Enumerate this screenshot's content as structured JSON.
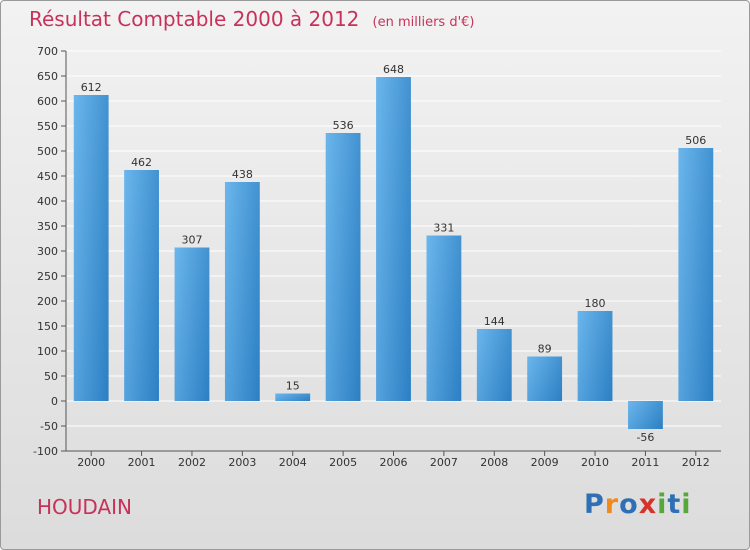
{
  "header": {
    "title": "Résultat Comptable 2000 à 2012",
    "subtitle": "(en milliers d'€)"
  },
  "footer": {
    "place": "HOUDAIN",
    "brand_letters": [
      "P",
      "r",
      "o",
      "x",
      "i",
      "t",
      "i"
    ],
    "brand_colors": [
      "#2f6fb5",
      "#f08a1c",
      "#2f6fb5",
      "#d6322b",
      "#56a83a",
      "#2f6fb5",
      "#56a83a"
    ]
  },
  "colors": {
    "bar_light": "#6bb6ec",
    "bar_dark": "#2c7fc3",
    "grid": "#ffffff",
    "text": "#333333",
    "accent": "#c8325a"
  },
  "chart_data": {
    "type": "bar",
    "title": "Résultat Comptable 2000 à 2012",
    "subtitle": "(en milliers d'€)",
    "categories": [
      "2000",
      "2001",
      "2002",
      "2003",
      "2004",
      "2005",
      "2006",
      "2007",
      "2008",
      "2009",
      "2010",
      "2011",
      "2012"
    ],
    "values": [
      612,
      462,
      307,
      438,
      15,
      536,
      648,
      331,
      144,
      89,
      180,
      -56,
      506
    ],
    "ylim": [
      -100,
      700
    ],
    "ytick_step": 50,
    "grid": true
  }
}
